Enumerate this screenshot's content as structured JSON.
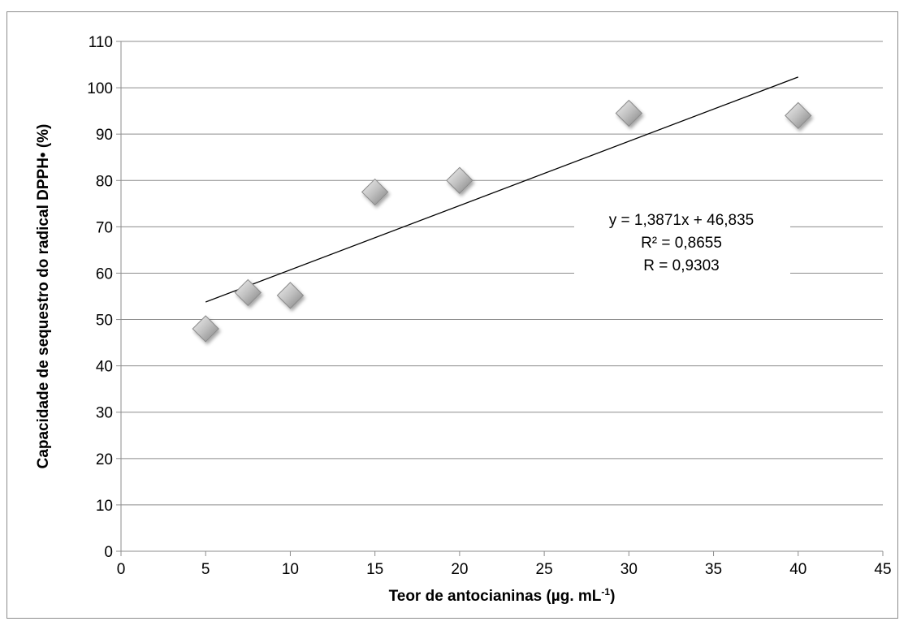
{
  "chart_data": {
    "type": "scatter",
    "title": "",
    "xlabel": "Teor de antocianinas (µg. mL",
    "xlabel_superscript": "-1",
    "xlabel_suffix": ")",
    "ylabel": "Capacidade de sequestro do radical DPPH• (%)",
    "xlim": [
      0,
      45
    ],
    "ylim": [
      0,
      110
    ],
    "x_ticks": [
      0,
      5,
      10,
      15,
      20,
      25,
      30,
      35,
      40,
      45
    ],
    "y_ticks": [
      0,
      10,
      20,
      30,
      40,
      50,
      60,
      70,
      80,
      90,
      100,
      110
    ],
    "grid": "horizontal",
    "series": [
      {
        "marker": "diamond",
        "color": "#a6a6a6",
        "points": [
          {
            "x": 5,
            "y": 48
          },
          {
            "x": 7.5,
            "y": 55.8
          },
          {
            "x": 10,
            "y": 55.2
          },
          {
            "x": 15,
            "y": 77.5
          },
          {
            "x": 20,
            "y": 80
          },
          {
            "x": 30,
            "y": 94.5
          },
          {
            "x": 40,
            "y": 94
          }
        ]
      }
    ],
    "trendline": {
      "type": "linear",
      "slope": 1.3871,
      "intercept": 46.835,
      "x_range": [
        5,
        40
      ],
      "color": "#000000"
    },
    "annotations": [
      "y = 1,3871x  + 46,835",
      "R² = 0,8655",
      "R = 0,9303"
    ]
  }
}
